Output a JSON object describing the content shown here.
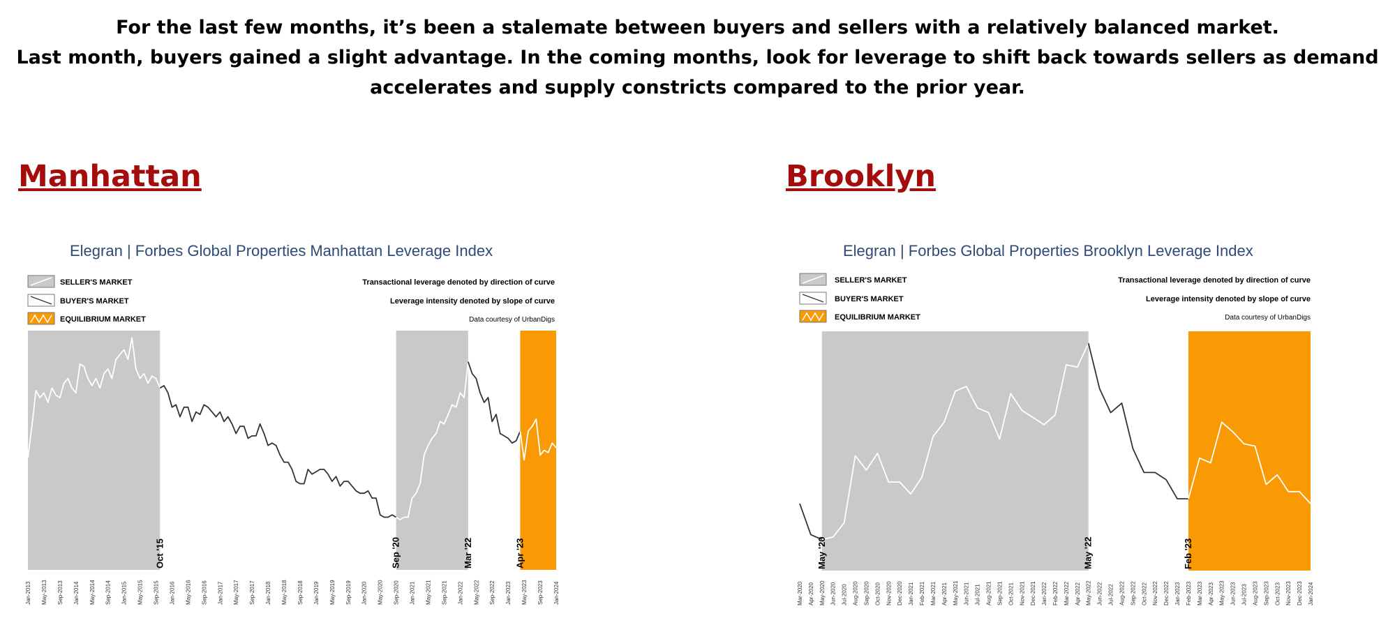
{
  "headline": {
    "line1": "For the last few months, it’s been a stalemate between buyers and sellers with a relatively balanced market.",
    "line2": "Last month, buyers gained a slight advantage.  In the coming months, look for leverage to shift back towards sellers as demand",
    "line3": "accelerates and supply constricts compared to the prior year."
  },
  "sections": {
    "manhattan": "Manhattan",
    "brooklyn": "Brooklyn"
  },
  "legend": {
    "seller": "SELLER'S MARKET",
    "buyer": "BUYER'S MARKET",
    "equilibrium": "EQUILIBRIUM MARKET"
  },
  "notes": {
    "direction": "Transactional leverage denoted by direction of curve",
    "slope": "Leverage intensity denoted by slope of curve",
    "credit": "Data courtesy of UrbanDigs"
  },
  "colors": {
    "seller_region": "#c9c9c9",
    "equilibrium_region": "#f99a05",
    "line_buyer": "#333333",
    "line_other": "#ffffff",
    "section_title": "#a50d0d",
    "chart_title": "#2e4a78"
  },
  "chart_data": [
    {
      "type": "line",
      "title_bold": "Elegran | Forbes Global Properties",
      "title_rest": "Manhattan Leverage Index",
      "x_tick_labels": [
        "Jan-2013",
        "May-2013",
        "Sep-2013",
        "Jan-2014",
        "May-2014",
        "Sep-2014",
        "Jan-2015",
        "May-2015",
        "Sep-2015",
        "Jan-2016",
        "May-2016",
        "Sep-2016",
        "Jan-2017",
        "May-2017",
        "Sep-2017",
        "Jan-2018",
        "May-2018",
        "Sep-2018",
        "Jan-2019",
        "May-2019",
        "Sep-2019",
        "Jan-2020",
        "May-2020",
        "Sep-2020",
        "Jan-2021",
        "May-2021",
        "Sep-2021",
        "Jan-2022",
        "May-2022",
        "Sep-2022",
        "Jan-2023",
        "May-2023",
        "Sep-2023",
        "Jan-2024"
      ],
      "regions": [
        {
          "kind": "seller",
          "from": 0,
          "to": 33
        },
        {
          "kind": "buyer",
          "from": 33,
          "to": 92
        },
        {
          "kind": "seller",
          "from": 92,
          "to": 110
        },
        {
          "kind": "buyer",
          "from": 110,
          "to": 123
        },
        {
          "kind": "equilibrium",
          "from": 123,
          "to": 132
        }
      ],
      "pivots": [
        {
          "label": "Oct '15",
          "index": 33
        },
        {
          "label": "Sep '20",
          "index": 92
        },
        {
          "label": "Mar '22",
          "index": 110
        },
        {
          "label": "Apr '23",
          "index": 123
        }
      ],
      "ylim": [
        0,
        100
      ],
      "values": [
        47,
        60,
        75,
        72,
        74,
        70,
        76,
        73,
        72,
        78,
        80,
        76,
        74,
        86,
        85,
        80,
        77,
        80,
        76,
        82,
        84,
        80,
        88,
        90,
        92,
        88,
        97,
        84,
        80,
        82,
        78,
        81,
        80,
        76,
        77,
        74,
        68,
        69,
        64,
        68,
        68,
        62,
        66,
        65,
        69,
        68,
        66,
        64,
        66,
        62,
        64,
        61,
        57,
        60,
        60,
        55,
        56,
        56,
        61,
        57,
        52,
        53,
        52,
        48,
        45,
        45,
        42,
        37,
        36,
        36,
        42,
        40,
        41,
        42,
        42,
        40,
        37,
        39,
        35,
        37,
        37,
        35,
        33,
        32,
        32,
        33,
        30,
        30,
        23,
        22,
        22,
        23,
        22,
        21,
        22,
        22,
        30,
        32,
        36,
        48,
        52,
        55,
        57,
        62,
        61,
        65,
        69,
        68,
        74,
        72,
        87,
        82,
        80,
        74,
        70,
        72,
        62,
        65,
        57,
        56,
        55,
        53,
        54,
        58,
        46,
        58,
        60,
        63,
        48,
        50,
        49,
        53,
        51
      ]
    },
    {
      "type": "line",
      "title_bold": "Elegran | Forbes Global Properties",
      "title_rest": "Brooklyn Leverage Index",
      "x_tick_labels": [
        "Mar-2020",
        "Apr-2020",
        "May-2020",
        "Jun-2020",
        "Jul-2020",
        "Aug-2020",
        "Sep-2020",
        "Oct-2020",
        "Nov-2020",
        "Dec-2020",
        "Jan-2021",
        "Feb-2021",
        "Mar-2021",
        "Apr-2021",
        "May-2021",
        "Jun-2021",
        "Jul-2021",
        "Aug-2021",
        "Sep-2021",
        "Oct-2021",
        "Nov-2021",
        "Dec-2021",
        "Jan-2022",
        "Feb-2022",
        "Mar-2022",
        "Apr-2022",
        "May-2022",
        "Jun-2022",
        "Jul-2022",
        "Aug-2022",
        "Sep-2022",
        "Oct-2022",
        "Nov-2022",
        "Dec-2022",
        "Jan-2023",
        "Feb-2023",
        "Mar-2023",
        "Apr-2023",
        "May-2023",
        "Jun-2023",
        "Jul-2023",
        "Aug-2023",
        "Sep-2023",
        "Oct-2023",
        "Nov-2023",
        "Dec-2023",
        "Jan-2024"
      ],
      "regions": [
        {
          "kind": "buyer",
          "from": 0,
          "to": 2
        },
        {
          "kind": "seller",
          "from": 2,
          "to": 26
        },
        {
          "kind": "buyer",
          "from": 26,
          "to": 35
        },
        {
          "kind": "equilibrium",
          "from": 35,
          "to": 46
        }
      ],
      "pivots": [
        {
          "label": "May '20",
          "index": 2
        },
        {
          "label": "May '22",
          "index": 26
        },
        {
          "label": "Feb '23",
          "index": 35
        }
      ],
      "ylim": [
        0,
        100
      ],
      "values": [
        28,
        15,
        13,
        14,
        20,
        48,
        42,
        49,
        37,
        37,
        32,
        39,
        56,
        62,
        75,
        77,
        68,
        66,
        55,
        74,
        67,
        64,
        61,
        65,
        86,
        85,
        95,
        76,
        66,
        70,
        51,
        41,
        41,
        38,
        30,
        30,
        47,
        45,
        62,
        58,
        53,
        52,
        36,
        40,
        33,
        33,
        28
      ]
    }
  ]
}
